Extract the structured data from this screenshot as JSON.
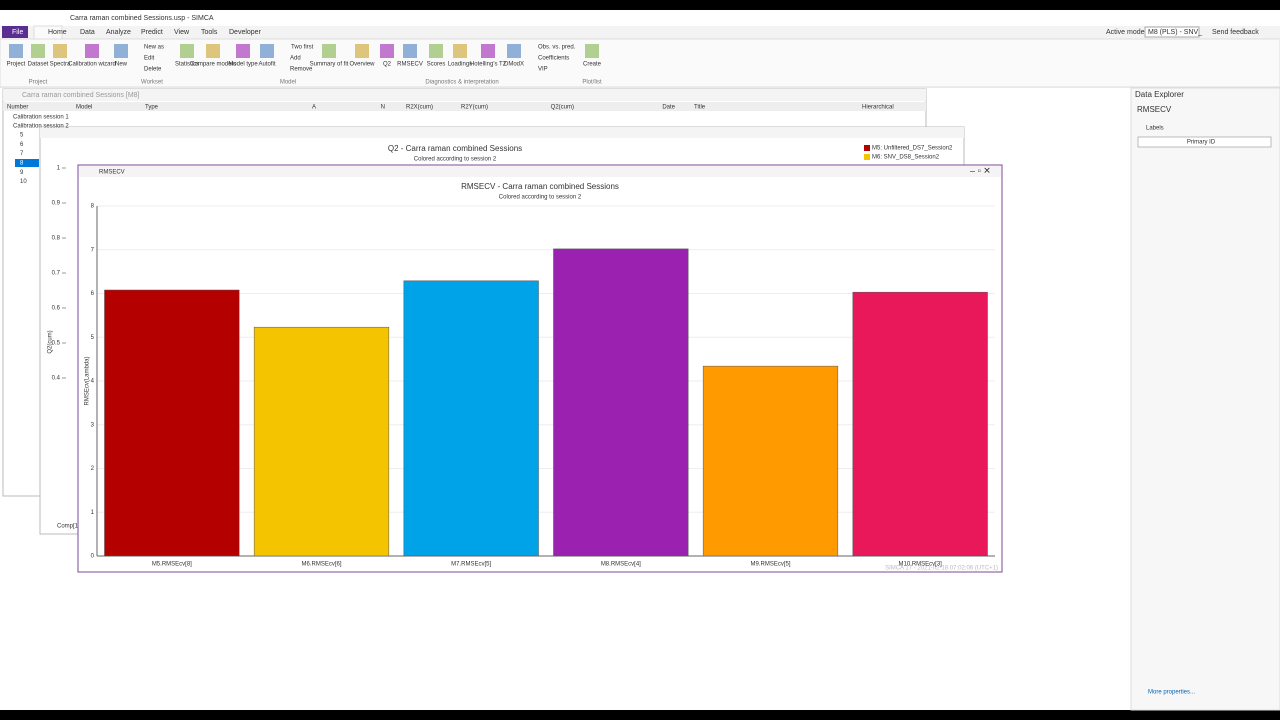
{
  "app": {
    "title": "Carra raman combined Sessions.usp - SIMCA",
    "tabs": [
      "File",
      "Home",
      "Data",
      "Analyze",
      "Predict",
      "View",
      "Tools",
      "Developer"
    ],
    "active_model_label": "Active model:",
    "active_model": "M8 (PLS) - SNV_",
    "feedback": "Send feedback"
  },
  "ribbon": {
    "buttons": [
      "Project",
      "Dataset",
      "Spectra",
      "Calibration wizard",
      "New",
      "Statistics",
      "Compare models",
      "Model type",
      "Autofit",
      "Summary of fit",
      "Overview",
      "Q2",
      "RMSECV",
      "Scores",
      "Loadings",
      "Hotelling's T2",
      "DModX",
      "Create"
    ],
    "small_buttons": [
      "New as",
      "Edit",
      "Delete",
      "Two first",
      "Add",
      "Remove",
      "Obs. vs. pred.",
      "Coefficients",
      "VIP"
    ],
    "groups": [
      "Project",
      "Workset",
      "Model",
      "Diagnostics & interpretation",
      "Plot/list"
    ]
  },
  "model_window": {
    "title": "Carra raman combined Sessions [M8]",
    "columns": [
      "Number",
      "Model",
      "Type",
      "A",
      "N",
      "R2X(cum)",
      "R2Y(cum)",
      "Q2(cum)",
      "Date",
      "Title",
      "Hierarchical"
    ],
    "groups": [
      "Calibration session 1",
      "Calibration session 2"
    ],
    "rows": [
      "5",
      "6",
      "7",
      "8",
      "9",
      "10"
    ]
  },
  "q2_window": {
    "title": "Q2 - Carra raman combined Sessions",
    "subtitle": "Colored according to session 2",
    "legend": [
      "M5: Unfiltered_DS7_Session2",
      "M6: SNV_DS8_Session2"
    ],
    "legend_colors": [
      "#b50000",
      "#f5c400"
    ],
    "ylabel": "Q2(cum)",
    "xlabel": "Comp[1]",
    "ylim": [
      0,
      1
    ],
    "yticks": [
      0.4,
      0.5,
      0.6,
      0.7,
      0.8,
      0.9,
      1
    ]
  },
  "chart_data": {
    "type": "bar",
    "window_title": "RMSECV",
    "title": "RMSECV - Carra raman combined Sessions",
    "subtitle": "Colored according to session 2",
    "ylabel": "RMSEcv(Lambda)",
    "categories": [
      "M5.RMSEcv[8]",
      "M6.RMSEcv[6]",
      "M7.RMSEcv[5]",
      "M8.RMSEcv[4]",
      "M9.RMSEcv[5]",
      "M10.RMSEcv[3]"
    ],
    "values": [
      6.08,
      5.23,
      6.29,
      7.02,
      4.34,
      6.03
    ],
    "colors": [
      "#b50000",
      "#f5c400",
      "#00a2e8",
      "#9b22b0",
      "#ff9a00",
      "#e8185a"
    ],
    "ylim": [
      0,
      8
    ],
    "yticks": [
      0,
      1,
      2,
      3,
      4,
      5,
      6,
      7,
      8
    ],
    "grid": true,
    "footer": "SIMCA 17 - 2021-02-18 07:02:06 (UTC+1)"
  },
  "data_explorer": {
    "title": "Data Explorer",
    "item": "RMSECV",
    "section": "Labels",
    "dropdown": "Primary ID",
    "link": "More properties..."
  }
}
